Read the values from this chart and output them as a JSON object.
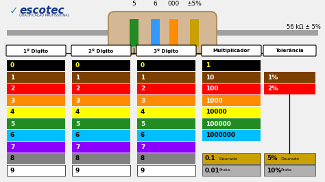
{
  "bg_color": "#f0f0f0",
  "wire_color": "#a0a0a0",
  "body_color": "#D4B896",
  "body_edge": "#B09060",
  "band_colors": [
    "#228B22",
    "#3399FF",
    "#FF8C00"
  ],
  "tol_band_color": "#C8A000",
  "band_above_labels": [
    "5",
    "6",
    "000",
    "±5%"
  ],
  "resistor_label": "56 kΩ ± 5%",
  "col_headers": [
    "1º Digito",
    "2º Digito",
    "3º Digito",
    "Multiplicador",
    "Tolerância"
  ],
  "digit_colors": [
    "#000000",
    "#7B3F00",
    "#FF0000",
    "#FF8C00",
    "#FFFF00",
    "#228B22",
    "#00BFFF",
    "#8B00FF",
    "#808080",
    "#FFFFFF"
  ],
  "digit_labels": [
    "0",
    "1",
    "2",
    "3",
    "4",
    "5",
    "6",
    "7",
    "8",
    "9"
  ],
  "digit_text_colors": [
    "#FFFF00",
    "#FFFFFF",
    "#FFFFFF",
    "#FFFFFF",
    "#000000",
    "#FFFFFF",
    "#000000",
    "#FFFFFF",
    "#000000",
    "#000000"
  ],
  "mult_colors": [
    "#000000",
    "#7B3F00",
    "#FF0000",
    "#FF8C00",
    "#FFFF00",
    "#228B22",
    "#00BFFF"
  ],
  "mult_labels": [
    "1",
    "10",
    "100",
    "1000",
    "10000",
    "100000",
    "1000000"
  ],
  "mult_text_colors": [
    "#FFFF00",
    "#FFFFFF",
    "#FFFFFF",
    "#FFFFFF",
    "#000000",
    "#FFFFFF",
    "#000000"
  ],
  "mult_extra_colors": [
    "#C8A000",
    "#B0B0B0"
  ],
  "mult_extra_labels": [
    "0.1",
    "0.01"
  ],
  "mult_extra_suffix": [
    "Dourado",
    "Prata"
  ],
  "tol_colors": [
    "#7B3F00",
    "#FF0000"
  ],
  "tol_labels": [
    "1%",
    "2%"
  ],
  "tol_text_colors": [
    "#FFFFFF",
    "#FFFFFF"
  ],
  "tol_extra_colors": [
    "#C8A000",
    "#B0B0B0"
  ],
  "tol_extra_labels": [
    "5%",
    "10%"
  ],
  "tol_extra_suffix": [
    "Dourado",
    "Prata"
  ],
  "logo_text": "escotec",
  "logo_sub": "QUALIFICAÇÃO PROFISSIONAL"
}
